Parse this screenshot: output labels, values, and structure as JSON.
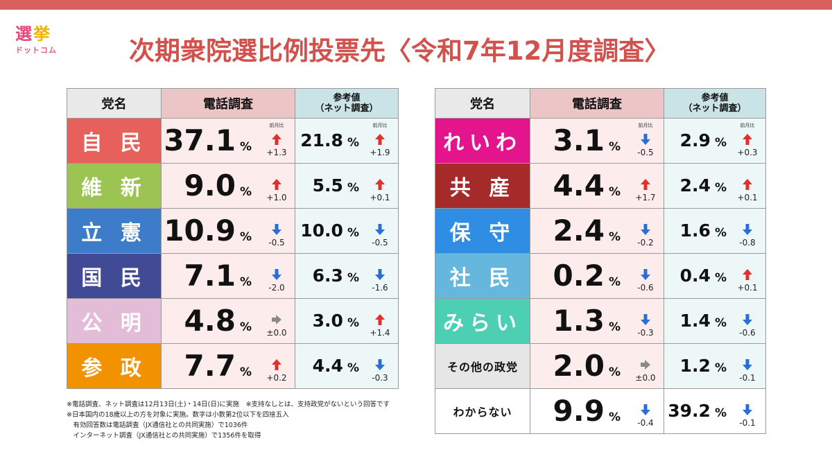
{
  "logo": {
    "line1": [
      "選",
      "挙"
    ],
    "line1_colors": [
      "#e8457a",
      "#f0b400"
    ],
    "line2": "ドットコム"
  },
  "title": "次期衆院選比例投票先〈令和7年12月度調査〉",
  "headers": {
    "party": "党名",
    "tel": "電話調査",
    "net": "参考値\n（ネット調査）"
  },
  "delta_caption": "前月比",
  "percent_sign": "%",
  "colors": {
    "up": "#e0302b",
    "down": "#2b6fd6",
    "flat": "#8a8a8a"
  },
  "left_rows": [
    {
      "party": "自 民",
      "color": "#e8605c",
      "tel": "37.1",
      "tel_change": "+1.3",
      "tel_dir": "up",
      "net": "21.8",
      "net_change": "+1.9",
      "net_dir": "up",
      "caption": true
    },
    {
      "party": "維 新",
      "color": "#9bc452",
      "tel": "9.0",
      "tel_change": "+1.0",
      "tel_dir": "up",
      "net": "5.5",
      "net_change": "+0.1",
      "net_dir": "up"
    },
    {
      "party": "立 憲",
      "color": "#3d7cc8",
      "tel": "10.9",
      "tel_change": "-0.5",
      "tel_dir": "down",
      "net": "10.0",
      "net_change": "-0.5",
      "net_dir": "down"
    },
    {
      "party": "国 民",
      "color": "#414a94",
      "tel": "7.1",
      "tel_change": "-2.0",
      "tel_dir": "down",
      "net": "6.3",
      "net_change": "-1.6",
      "net_dir": "down"
    },
    {
      "party": "公 明",
      "color": "#e3bcd8",
      "tel": "4.8",
      "tel_change": "±0.0",
      "tel_dir": "flat",
      "net": "3.0",
      "net_change": "+1.4",
      "net_dir": "up"
    },
    {
      "party": "参 政",
      "color": "#f39200",
      "tel": "7.7",
      "tel_change": "+0.2",
      "tel_dir": "up",
      "net": "4.4",
      "net_change": "-0.3",
      "net_dir": "down"
    }
  ],
  "right_rows": [
    {
      "party": "れいわ",
      "color": "#e4148c",
      "tel": "3.1",
      "tel_change": "-0.5",
      "tel_dir": "down",
      "net": "2.9",
      "net_change": "+0.3",
      "net_dir": "up",
      "caption": true
    },
    {
      "party": "共 産",
      "color": "#a52a2a",
      "tel": "4.4",
      "tel_change": "+1.7",
      "tel_dir": "up",
      "net": "2.4",
      "net_change": "+0.1",
      "net_dir": "up"
    },
    {
      "party": "保 守",
      "color": "#2f8de4",
      "tel": "2.4",
      "tel_change": "-0.2",
      "tel_dir": "down",
      "net": "1.6",
      "net_change": "-0.8",
      "net_dir": "down"
    },
    {
      "party": "社 民",
      "color": "#66b7dd",
      "tel": "0.2",
      "tel_change": "-0.6",
      "tel_dir": "down",
      "net": "0.4",
      "net_change": "+0.1",
      "net_dir": "up"
    },
    {
      "party": "みらい",
      "color": "#4ccfb3",
      "tel": "1.3",
      "tel_change": "-0.3",
      "tel_dir": "down",
      "net": "1.4",
      "net_change": "-0.6",
      "net_dir": "down"
    },
    {
      "party": "その他の政党",
      "color": "#e6e6e6",
      "dark": true,
      "tel": "2.0",
      "tel_change": "±0.0",
      "tel_dir": "flat",
      "net": "1.2",
      "net_change": "-0.1",
      "net_dir": "down"
    },
    {
      "party": "わからない",
      "color": "#ffffff",
      "dark": true,
      "plain": true,
      "tel": "9.9",
      "tel_change": "-0.4",
      "tel_dir": "down",
      "net": "39.2",
      "net_change": "-0.1",
      "net_dir": "down"
    }
  ],
  "notes": [
    "※電話調査、ネット調査は12月13日(土)・14日(日)に実施　※支持なしとは、支持政党がないという回答です",
    "※日本国内の18歳以上の方を対象に実施。数字は小数第2位以下を四捨五入",
    "　有効回答数は電話調査（JX通信社との共同実施）で1036件",
    "　インターネット調査（JX通信社との共同実施）で1356件を取得"
  ],
  "chart_data": {
    "type": "table",
    "title": "次期衆院選比例投票先〈令和7年12月度調査〉",
    "columns": [
      "党名",
      "電話調査",
      "前月比",
      "参考値（ネット調査）",
      "前月比"
    ],
    "unit": "%",
    "rows": [
      [
        "自民",
        37.1,
        "+1.3",
        21.8,
        "+1.9"
      ],
      [
        "維新",
        9.0,
        "+1.0",
        5.5,
        "+0.1"
      ],
      [
        "立憲",
        10.9,
        "-0.5",
        10.0,
        "-0.5"
      ],
      [
        "国民",
        7.1,
        "-2.0",
        6.3,
        "-1.6"
      ],
      [
        "公明",
        4.8,
        "±0.0",
        3.0,
        "+1.4"
      ],
      [
        "参政",
        7.7,
        "+0.2",
        4.4,
        "-0.3"
      ],
      [
        "れいわ",
        3.1,
        "-0.5",
        2.9,
        "+0.3"
      ],
      [
        "共産",
        4.4,
        "+1.7",
        2.4,
        "+0.1"
      ],
      [
        "保守",
        2.4,
        "-0.2",
        1.6,
        "-0.8"
      ],
      [
        "社民",
        0.2,
        "-0.6",
        0.4,
        "+0.1"
      ],
      [
        "みらい",
        1.3,
        "-0.3",
        1.4,
        "-0.6"
      ],
      [
        "その他の政党",
        2.0,
        "±0.0",
        1.2,
        "-0.1"
      ],
      [
        "わからない",
        9.9,
        "-0.4",
        39.2,
        "-0.1"
      ]
    ]
  }
}
